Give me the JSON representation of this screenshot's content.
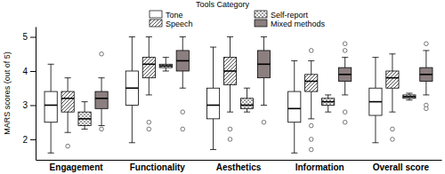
{
  "chart_data": {
    "type": "box",
    "legend_title": "Tools Category",
    "y_label": "MARS scores (out of 5)",
    "legend": "top",
    "categories": [
      "Engagement",
      "Functionality",
      "Aesthetics",
      "Information",
      "Overall score"
    ],
    "ylim": [
      1.4,
      5.3
    ],
    "yticks": [
      2,
      3,
      4,
      5
    ],
    "series": [
      {
        "name": "Tone",
        "color": "#ffffff",
        "values": [
          {
            "min": 1.6,
            "q1": 2.5,
            "median": 3.0,
            "q3": 3.4,
            "max": 4.2,
            "outliers": []
          },
          {
            "min": 1.9,
            "q1": 3.0,
            "median": 3.5,
            "q3": 4.0,
            "max": 5.0,
            "outliers": []
          },
          {
            "min": 1.7,
            "q1": 2.6,
            "median": 3.0,
            "q3": 3.5,
            "max": 4.7,
            "outliers": []
          },
          {
            "min": 1.6,
            "q1": 2.5,
            "median": 2.9,
            "q3": 3.4,
            "max": 4.3,
            "outliers": []
          },
          {
            "min": 1.9,
            "q1": 2.7,
            "median": 3.1,
            "q3": 3.5,
            "max": 4.4,
            "outliers": []
          }
        ]
      },
      {
        "name": "Speech",
        "color": "#404040",
        "values": [
          {
            "min": 2.2,
            "q1": 2.8,
            "median": 3.2,
            "q3": 3.4,
            "max": 3.8,
            "outliers": [
              1.8
            ]
          },
          {
            "min": 3.3,
            "q1": 3.8,
            "median": 4.2,
            "q3": 4.4,
            "max": 5.0,
            "outliers": [
              2.5,
              2.3
            ]
          },
          {
            "min": 2.8,
            "q1": 3.6,
            "median": 4.0,
            "q3": 4.4,
            "max": 5.0,
            "outliers": [
              2.3,
              2.0
            ]
          },
          {
            "min": 2.6,
            "q1": 3.4,
            "median": 3.7,
            "q3": 3.9,
            "max": 4.3,
            "outliers": [
              4.6,
              2.4,
              2.0,
              1.7
            ]
          },
          {
            "min": 2.8,
            "q1": 3.5,
            "median": 3.8,
            "q3": 4.0,
            "max": 4.5,
            "outliers": [
              2.3,
              2.0
            ]
          }
        ]
      },
      {
        "name": "Self-report",
        "color": "#a0a0a0",
        "values": [
          {
            "min": 2.3,
            "q1": 2.4,
            "median": 2.6,
            "q3": 2.8,
            "max": 3.1,
            "outliers": []
          },
          {
            "min": 4.0,
            "q1": 4.1,
            "median": 4.15,
            "q3": 4.2,
            "max": 4.4,
            "outliers": []
          },
          {
            "min": 2.8,
            "q1": 2.9,
            "median": 3.0,
            "q3": 3.2,
            "max": 3.5,
            "outliers": []
          },
          {
            "min": 2.8,
            "q1": 3.0,
            "median": 3.1,
            "q3": 3.2,
            "max": 3.3,
            "outliers": []
          },
          {
            "min": 3.15,
            "q1": 3.2,
            "median": 3.25,
            "q3": 3.3,
            "max": 3.35,
            "outliers": []
          }
        ]
      },
      {
        "name": "Mixed methods",
        "color": "#8c7f7f",
        "values": [
          {
            "min": 2.4,
            "q1": 2.9,
            "median": 3.2,
            "q3": 3.4,
            "max": 3.8,
            "outliers": [
              4.5,
              2.3
            ]
          },
          {
            "min": 3.5,
            "q1": 4.0,
            "median": 4.3,
            "q3": 4.6,
            "max": 5.0,
            "outliers": [
              2.8,
              2.3
            ]
          },
          {
            "min": 3.0,
            "q1": 3.8,
            "median": 4.2,
            "q3": 4.6,
            "max": 5.0,
            "outliers": [
              2.5
            ]
          },
          {
            "min": 3.3,
            "q1": 3.7,
            "median": 3.9,
            "q3": 4.1,
            "max": 4.4,
            "outliers": [
              4.8,
              4.6,
              2.8,
              2.5
            ]
          },
          {
            "min": 3.3,
            "q1": 3.7,
            "median": 3.9,
            "q3": 4.1,
            "max": 4.6,
            "outliers": [
              4.8,
              3.0,
              2.9
            ]
          }
        ]
      }
    ]
  }
}
